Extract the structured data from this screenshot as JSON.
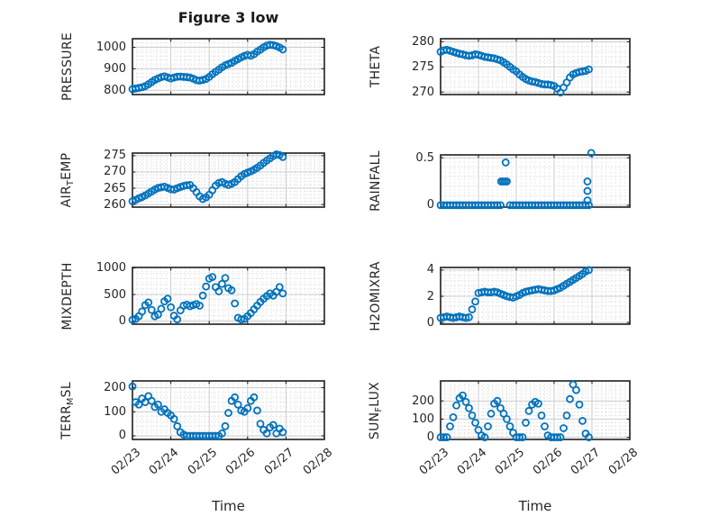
{
  "figure": {
    "title": "Figure 3 low",
    "xlabel": "Time"
  },
  "colors": {
    "marker": "#0072BD",
    "axis": "#1f1f1f",
    "grid_major": "#cccccc",
    "grid_minor": "#d9d9d9",
    "text": "#262626",
    "background": "#ffffff"
  },
  "x_axis": {
    "lim": [
      0,
      5
    ],
    "tick_values": [
      0,
      1,
      2,
      3,
      4,
      5
    ],
    "tick_labels": [
      "02/23",
      "02/24",
      "02/25",
      "02/26",
      "02/27",
      "02/28"
    ],
    "minor_step": 0.125
  },
  "chart_data": [
    {
      "id": "pressure",
      "name": "PRESSURE",
      "type": "scatter",
      "ylabel_parts": [
        {
          "t": "PRESSURE"
        }
      ],
      "ylim": [
        780,
        1040
      ],
      "minor_y_step": 20,
      "show_x": false,
      "yticks": {
        "values": [
          800,
          900,
          1000
        ],
        "labels": [
          "800",
          "900",
          "1000"
        ]
      },
      "x": [
        0,
        0.083,
        0.167,
        0.25,
        0.333,
        0.417,
        0.5,
        0.583,
        0.667,
        0.75,
        0.833,
        0.917,
        1,
        1.083,
        1.167,
        1.25,
        1.333,
        1.417,
        1.5,
        1.583,
        1.667,
        1.75,
        1.833,
        1.917,
        2,
        2.083,
        2.167,
        2.25,
        2.333,
        2.417,
        2.5,
        2.583,
        2.667,
        2.75,
        2.833,
        2.917,
        3,
        3.083,
        3.167,
        3.25,
        3.333,
        3.417,
        3.5,
        3.583,
        3.667,
        3.75,
        3.833,
        3.917
      ],
      "y": [
        805,
        808,
        811,
        814,
        819,
        828,
        838,
        848,
        855,
        861,
        865,
        860,
        855,
        859,
        863,
        864,
        862,
        861,
        859,
        854,
        847,
        845,
        848,
        853,
        862,
        875,
        886,
        896,
        907,
        916,
        922,
        928,
        937,
        945,
        953,
        960,
        965,
        961,
        968,
        980,
        989,
        1000,
        1008,
        1012,
        1010,
        1006,
        999,
        990
      ]
    },
    {
      "id": "theta",
      "name": "THETA",
      "type": "scatter",
      "ylabel_parts": [
        {
          "t": "THETA"
        }
      ],
      "ylim": [
        269.5,
        280.6
      ],
      "minor_y_step": 1,
      "show_x": false,
      "yticks": {
        "values": [
          270,
          275,
          280
        ],
        "labels": [
          "270",
          "275",
          "280"
        ]
      },
      "x": [
        0,
        0.083,
        0.167,
        0.25,
        0.333,
        0.417,
        0.5,
        0.583,
        0.667,
        0.75,
        0.833,
        0.917,
        1,
        1.083,
        1.167,
        1.25,
        1.333,
        1.417,
        1.5,
        1.583,
        1.667,
        1.75,
        1.833,
        1.917,
        2,
        2.083,
        2.167,
        2.25,
        2.333,
        2.417,
        2.5,
        2.583,
        2.667,
        2.75,
        2.833,
        2.917,
        3,
        3.083,
        3.167,
        3.25,
        3.333,
        3.417,
        3.5,
        3.583,
        3.667,
        3.75,
        3.833,
        3.917
      ],
      "y": [
        278.0,
        278.3,
        278.4,
        278.2,
        278.0,
        277.8,
        277.6,
        277.5,
        277.3,
        277.2,
        277.3,
        277.5,
        277.4,
        277.2,
        277.0,
        276.9,
        276.8,
        276.7,
        276.5,
        276.3,
        275.9,
        275.5,
        275.0,
        274.5,
        274.1,
        273.5,
        273.0,
        272.6,
        272.3,
        272.1,
        272.0,
        271.8,
        271.6,
        271.5,
        271.5,
        271.4,
        271.2,
        270.7,
        269.9,
        270.9,
        271.9,
        272.9,
        273.5,
        273.8,
        274.0,
        274.1,
        274.2,
        274.5
      ]
    },
    {
      "id": "airtemp",
      "name": "AIR_TEMP",
      "type": "scatter",
      "ylabel_parts": [
        {
          "t": "AIR"
        },
        {
          "t": "T",
          "sub": true
        },
        {
          "t": "EMP"
        }
      ],
      "ylim": [
        259.2,
        275.8
      ],
      "minor_y_step": 1,
      "show_x": false,
      "yticks": {
        "values": [
          260,
          265,
          270,
          275
        ],
        "labels": [
          "260",
          "265",
          "270",
          "275"
        ]
      },
      "x": [
        0,
        0.083,
        0.167,
        0.25,
        0.333,
        0.417,
        0.5,
        0.583,
        0.667,
        0.75,
        0.833,
        0.917,
        1,
        1.083,
        1.167,
        1.25,
        1.333,
        1.417,
        1.5,
        1.583,
        1.667,
        1.75,
        1.833,
        1.917,
        2,
        2.083,
        2.167,
        2.25,
        2.333,
        2.417,
        2.5,
        2.583,
        2.667,
        2.75,
        2.833,
        2.917,
        3,
        3.083,
        3.167,
        3.25,
        3.333,
        3.417,
        3.5,
        3.583,
        3.667,
        3.75,
        3.833,
        3.917
      ],
      "y": [
        261.0,
        261.4,
        261.9,
        262.3,
        262.8,
        263.4,
        264.0,
        264.6,
        265.1,
        265.3,
        265.5,
        265.1,
        264.7,
        264.6,
        265.0,
        265.4,
        265.7,
        265.9,
        266.0,
        265.0,
        263.8,
        262.5,
        261.7,
        262.2,
        263.0,
        264.4,
        265.8,
        266.6,
        266.9,
        266.4,
        266.0,
        266.4,
        266.9,
        267.8,
        268.7,
        269.4,
        269.8,
        270.2,
        270.7,
        271.3,
        272.0,
        272.8,
        273.5,
        274.2,
        274.9,
        275.4,
        275.2,
        274.6
      ]
    },
    {
      "id": "rainfall",
      "name": "RAINFALL",
      "type": "scatter",
      "ylabel_parts": [
        {
          "t": "RAINFALL"
        }
      ],
      "ylim": [
        -0.02,
        0.53
      ],
      "minor_y_step": 0.1,
      "show_x": false,
      "yticks": {
        "values": [
          0,
          0.5
        ],
        "labels": [
          "0",
          "0.5"
        ]
      },
      "x": [
        0,
        0.083,
        0.167,
        0.25,
        0.333,
        0.417,
        0.5,
        0.583,
        0.667,
        0.75,
        0.833,
        0.917,
        1,
        1.083,
        1.167,
        1.25,
        1.333,
        1.417,
        1.5,
        1.583,
        1.6,
        1.65,
        1.7,
        1.72,
        1.75,
        1.833,
        1.917,
        2,
        2.083,
        2.167,
        2.25,
        2.333,
        2.417,
        2.5,
        2.583,
        2.667,
        2.75,
        2.833,
        2.917,
        3,
        3.083,
        3.167,
        3.25,
        3.333,
        3.417,
        3.5,
        3.583,
        3.667,
        3.75,
        3.833,
        3.917,
        3.88,
        3.88,
        3.88,
        3.98
      ],
      "y": [
        0,
        0,
        0,
        0,
        0,
        0,
        0,
        0,
        0,
        0,
        0,
        0,
        0,
        0,
        0,
        0,
        0,
        0,
        0,
        0,
        0.25,
        0.25,
        0.25,
        0.45,
        0.25,
        0,
        0,
        0,
        0,
        0,
        0,
        0,
        0,
        0,
        0,
        0,
        0,
        0,
        0,
        0,
        0,
        0,
        0,
        0,
        0,
        0,
        0,
        0,
        0,
        0,
        0,
        0.25,
        0.15,
        0.05,
        0.55
      ]
    },
    {
      "id": "mixdepth",
      "name": "MIXDEPTH",
      "type": "scatter",
      "ylabel_parts": [
        {
          "t": "MIXDEPTH"
        }
      ],
      "ylim": [
        -60,
        1010
      ],
      "minor_y_step": 100,
      "show_x": false,
      "yticks": {
        "values": [
          0,
          500,
          1000
        ],
        "labels": [
          "0",
          "500",
          "1000"
        ]
      },
      "x": [
        0,
        0.083,
        0.167,
        0.25,
        0.333,
        0.417,
        0.5,
        0.583,
        0.667,
        0.75,
        0.833,
        0.917,
        1,
        1.083,
        1.167,
        1.25,
        1.333,
        1.417,
        1.5,
        1.583,
        1.667,
        1.75,
        1.833,
        1.917,
        2,
        2.083,
        2.167,
        2.25,
        2.333,
        2.417,
        2.5,
        2.583,
        2.667,
        2.75,
        2.833,
        2.917,
        3,
        3.083,
        3.167,
        3.25,
        3.333,
        3.417,
        3.5,
        3.583,
        3.667,
        3.75,
        3.833,
        3.917
      ],
      "y": [
        20,
        40,
        90,
        180,
        300,
        350,
        210,
        90,
        120,
        230,
        370,
        420,
        260,
        100,
        30,
        200,
        290,
        310,
        280,
        300,
        320,
        290,
        480,
        650,
        800,
        830,
        640,
        560,
        700,
        810,
        620,
        580,
        330,
        60,
        30,
        40,
        90,
        150,
        220,
        290,
        360,
        420,
        470,
        520,
        480,
        550,
        640,
        520
      ]
    },
    {
      "id": "h2omixra",
      "name": "H2OMIXRA",
      "type": "scatter",
      "ylabel_parts": [
        {
          "t": "H2OMIXRA"
        }
      ],
      "ylim": [
        -0.13,
        4.2
      ],
      "minor_y_step": 0.4,
      "show_x": false,
      "yticks": {
        "values": [
          0,
          2,
          4
        ],
        "labels": [
          "0",
          "2",
          "4"
        ]
      },
      "x": [
        0,
        0.083,
        0.167,
        0.25,
        0.333,
        0.417,
        0.5,
        0.583,
        0.667,
        0.75,
        0.833,
        0.917,
        1,
        1.083,
        1.167,
        1.25,
        1.333,
        1.417,
        1.5,
        1.583,
        1.667,
        1.75,
        1.833,
        1.917,
        2,
        2.083,
        2.167,
        2.25,
        2.333,
        2.417,
        2.5,
        2.583,
        2.667,
        2.75,
        2.833,
        2.917,
        3,
        3.083,
        3.167,
        3.25,
        3.333,
        3.417,
        3.5,
        3.583,
        3.667,
        3.75,
        3.833,
        3.917
      ],
      "y": [
        0.35,
        0.4,
        0.45,
        0.4,
        0.35,
        0.4,
        0.45,
        0.4,
        0.35,
        0.4,
        1.0,
        1.6,
        2.25,
        2.3,
        2.35,
        2.3,
        2.3,
        2.35,
        2.3,
        2.2,
        2.1,
        2.0,
        1.95,
        1.9,
        2.0,
        2.1,
        2.25,
        2.35,
        2.4,
        2.45,
        2.5,
        2.55,
        2.5,
        2.45,
        2.4,
        2.4,
        2.45,
        2.55,
        2.65,
        2.8,
        2.95,
        3.1,
        3.25,
        3.4,
        3.55,
        3.7,
        3.9,
        4.0
      ]
    },
    {
      "id": "terrmsl",
      "name": "TERR_MSL",
      "type": "scatter",
      "ylabel_parts": [
        {
          "t": "TERR"
        },
        {
          "t": "M",
          "sub": true
        },
        {
          "t": "SL"
        }
      ],
      "ylim": [
        -15,
        228
      ],
      "minor_y_step": 20,
      "show_x": true,
      "yticks": {
        "values": [
          0,
          100,
          200
        ],
        "labels": [
          "0",
          "100",
          "200"
        ]
      },
      "x": [
        0,
        0.083,
        0.167,
        0.25,
        0.333,
        0.417,
        0.5,
        0.583,
        0.667,
        0.75,
        0.833,
        0.917,
        1,
        1.083,
        1.167,
        1.25,
        1.333,
        1.417,
        1.5,
        1.583,
        1.667,
        1.75,
        1.833,
        1.917,
        2,
        2.083,
        2.167,
        2.25,
        2.333,
        2.417,
        2.5,
        2.583,
        2.667,
        2.75,
        2.833,
        2.917,
        3,
        3.083,
        3.167,
        3.25,
        3.333,
        3.417,
        3.5,
        3.583,
        3.667,
        3.75,
        3.833,
        3.917
      ],
      "y": [
        205,
        140,
        130,
        155,
        140,
        165,
        145,
        120,
        130,
        100,
        110,
        95,
        85,
        70,
        40,
        15,
        5,
        0,
        0,
        0,
        0,
        0,
        0,
        0,
        0,
        0,
        0,
        0,
        10,
        40,
        95,
        145,
        160,
        130,
        105,
        100,
        115,
        145,
        160,
        105,
        50,
        25,
        10,
        35,
        45,
        10,
        30,
        15
      ]
    },
    {
      "id": "sunflux",
      "name": "SUN_FLUX",
      "type": "scatter",
      "ylabel_parts": [
        {
          "t": "SUN"
        },
        {
          "t": "F",
          "sub": true
        },
        {
          "t": "LUX"
        }
      ],
      "ylim": [
        -12,
        310
      ],
      "minor_y_step": 20,
      "show_x": true,
      "yticks": {
        "values": [
          0,
          100,
          200
        ],
        "labels": [
          "0",
          "100",
          "200"
        ]
      },
      "x": [
        0,
        0.083,
        0.167,
        0.25,
        0.333,
        0.417,
        0.5,
        0.583,
        0.667,
        0.75,
        0.833,
        0.917,
        1,
        1.083,
        1.167,
        1.25,
        1.333,
        1.417,
        1.5,
        1.583,
        1.667,
        1.75,
        1.833,
        1.917,
        2,
        2.083,
        2.167,
        2.25,
        2.333,
        2.417,
        2.5,
        2.583,
        2.667,
        2.75,
        2.833,
        2.917,
        3,
        3.083,
        3.167,
        3.25,
        3.333,
        3.417,
        3.5,
        3.583,
        3.667,
        3.75,
        3.833,
        3.917
      ],
      "y": [
        0,
        0,
        0,
        60,
        110,
        175,
        215,
        230,
        195,
        160,
        120,
        80,
        40,
        10,
        0,
        60,
        130,
        185,
        200,
        160,
        130,
        100,
        60,
        25,
        0,
        0,
        0,
        80,
        145,
        180,
        195,
        185,
        120,
        60,
        10,
        0,
        0,
        0,
        0,
        50,
        120,
        210,
        290,
        260,
        180,
        90,
        20,
        0
      ]
    }
  ]
}
